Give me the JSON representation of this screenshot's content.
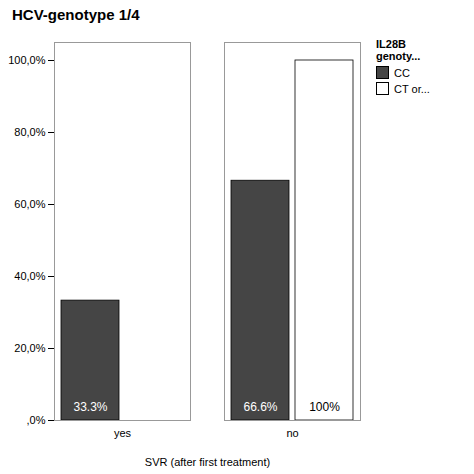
{
  "chart_data": {
    "type": "bar",
    "title": "HCV-genotype 1/4",
    "xlabel": "SVR (after first treatment)",
    "categories": [
      "yes",
      "no"
    ],
    "series": [
      {
        "name": "CC",
        "color": "#454545",
        "values": [
          33.3,
          66.6
        ],
        "value_labels": [
          "33.3%",
          "66.6%"
        ]
      },
      {
        "name": "CT or...",
        "color": "#ffffff",
        "values": [
          0.0,
          100.0
        ],
        "value_labels": [
          null,
          "100%"
        ]
      }
    ],
    "ylim": [
      0,
      105
    ],
    "yticks": [
      {
        "value": 0.0,
        "label": ",0%"
      },
      {
        "value": 20.0,
        "label": "20,0%"
      },
      {
        "value": 40.0,
        "label": "40,0%"
      },
      {
        "value": 60.0,
        "label": "60,0%"
      },
      {
        "value": 80.0,
        "label": "80,0%"
      },
      {
        "value": 100.0,
        "label": "100,0%"
      }
    ],
    "data_labels": true,
    "legend": "right",
    "legend_title": "IL28B\ngenoty..."
  }
}
